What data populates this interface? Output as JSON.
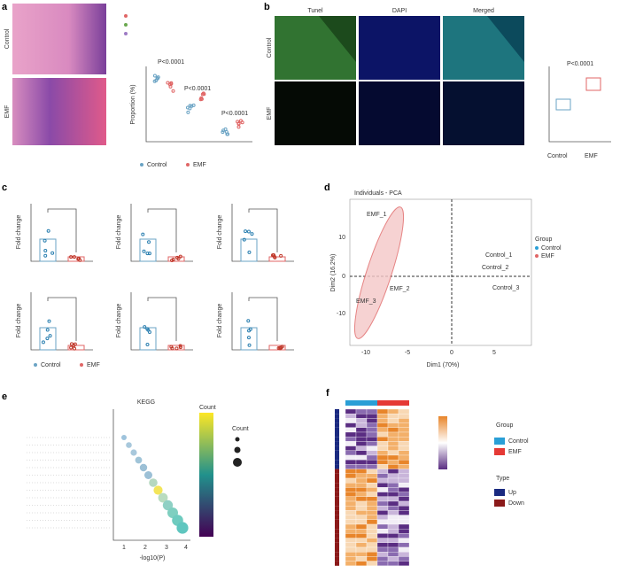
{
  "panels": {
    "a": "a",
    "b": "b",
    "c": "c",
    "d": "d",
    "e": "e",
    "f": "f"
  },
  "panel_a": {
    "row_labels": [
      "Control",
      "EMF"
    ],
    "y_axis": "Proportion (%)",
    "pvalues": [
      "P<0.0001",
      "P<0.0001",
      "P<0.0001"
    ],
    "legend": [
      "Control",
      "EMF"
    ]
  },
  "panel_b": {
    "columns": [
      "Tunel",
      "DAPI",
      "Merged"
    ],
    "row_labels": [
      "Control",
      "EMF"
    ],
    "pvalue": "P<0.0001",
    "legend": [
      "Control",
      "EMF"
    ]
  },
  "panel_c": {
    "y_axis": "Fold change",
    "legend": [
      "Control",
      "EMF"
    ]
  },
  "panel_d": {
    "title": "Individuals - PCA",
    "x_axis": "Dim1 (70%)",
    "y_axis": "Dim2 (16.2%)",
    "xticks": [
      "-10",
      "-5",
      "0",
      "5"
    ],
    "yticks": [
      "10",
      "0",
      "-10"
    ],
    "point_labels": [
      "EMF_1",
      "EMF_2",
      "EMF_3",
      "Control_1",
      "Control_2",
      "Control_3"
    ],
    "legend_title": "Group",
    "legend": [
      "Control",
      "EMF"
    ]
  },
  "panel_e": {
    "title": "KEGG",
    "x_axis": "-log10(P)",
    "xticks": [
      "1",
      "2",
      "3",
      "4"
    ],
    "color_title": "Count",
    "size_title": "Count"
  },
  "panel_f": {
    "legend_group_title": "Group",
    "legend_group": [
      "Control",
      "EMF"
    ],
    "legend_type_title": "Type",
    "legend_type": [
      "Up",
      "Down"
    ]
  }
}
